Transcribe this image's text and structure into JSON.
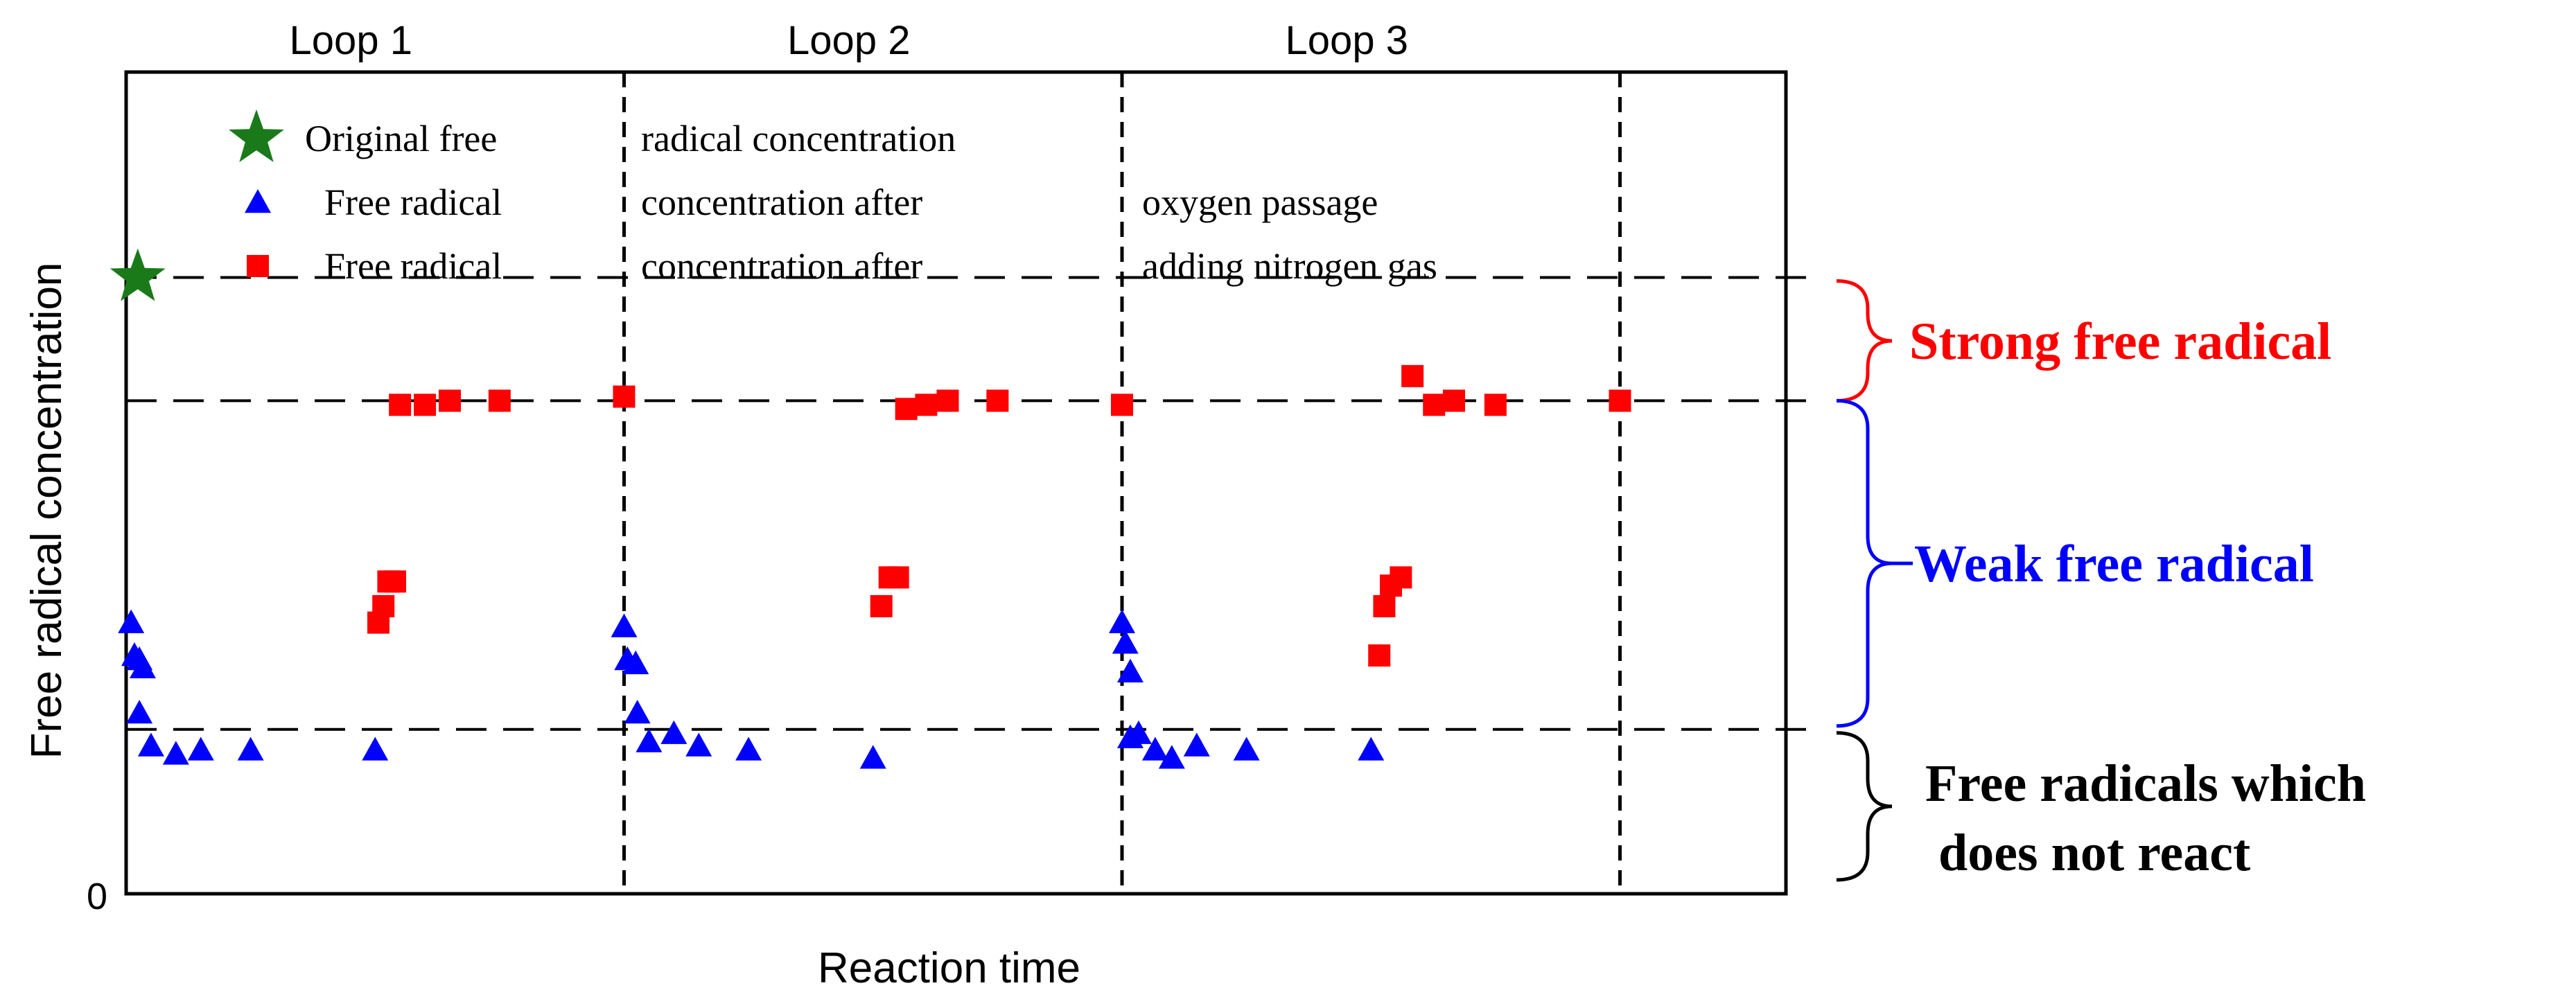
{
  "chart_data": {
    "type": "scatter",
    "title": "",
    "xlabel": "Reaction time",
    "ylabel": "Free radical concentration",
    "y_tick_labels": [
      "0"
    ],
    "xlim": [
      0,
      10
    ],
    "ylim": [
      0,
      10
    ],
    "loops": [
      "Loop  1",
      "Loop  2",
      "Loop  3"
    ],
    "loop_boundaries_x": [
      3,
      6,
      9
    ],
    "reference_levels_y": {
      "original": 7.5,
      "strong": 6.0,
      "nonreacting": 2.0
    },
    "legend": {
      "rows": [
        [
          "Original free",
          "radical concentration",
          ""
        ],
        [
          "Free radical",
          "concentration after",
          "oxygen passage"
        ],
        [
          "Free radical",
          "concentration after",
          "adding nitrogen gas"
        ]
      ]
    },
    "series": [
      {
        "name": "Original free radical concentration",
        "marker": "star",
        "color": "#1a7a1a",
        "points": [
          [
            0.07,
            7.5
          ]
        ]
      },
      {
        "name": "Free radical concentration after oxygen passage",
        "marker": "triangle",
        "color": "#0000ff",
        "points": [
          [
            0.03,
            3.3
          ],
          [
            0.05,
            2.9
          ],
          [
            0.08,
            2.85
          ],
          [
            0.1,
            2.75
          ],
          [
            0.08,
            2.2
          ],
          [
            0.15,
            1.8
          ],
          [
            0.3,
            1.7
          ],
          [
            0.45,
            1.75
          ],
          [
            0.75,
            1.75
          ],
          [
            1.5,
            1.75
          ],
          [
            3.0,
            3.25
          ],
          [
            3.02,
            2.85
          ],
          [
            3.07,
            2.8
          ],
          [
            3.08,
            2.2
          ],
          [
            3.15,
            1.85
          ],
          [
            3.3,
            1.95
          ],
          [
            3.45,
            1.8
          ],
          [
            3.75,
            1.75
          ],
          [
            4.5,
            1.65
          ],
          [
            6.0,
            3.3
          ],
          [
            6.02,
            3.05
          ],
          [
            6.05,
            2.7
          ],
          [
            6.05,
            1.9
          ],
          [
            6.1,
            1.95
          ],
          [
            6.2,
            1.75
          ],
          [
            6.3,
            1.65
          ],
          [
            6.45,
            1.8
          ],
          [
            6.75,
            1.75
          ],
          [
            7.5,
            1.75
          ]
        ]
      },
      {
        "name": "Free radical concentration after adding nitrogen gas",
        "marker": "square",
        "color": "#ff0000",
        "points": [
          [
            1.52,
            3.3
          ],
          [
            1.55,
            3.5
          ],
          [
            1.58,
            3.8
          ],
          [
            1.62,
            3.8
          ],
          [
            1.65,
            5.95
          ],
          [
            1.8,
            5.95
          ],
          [
            1.95,
            6.0
          ],
          [
            2.25,
            6.0
          ],
          [
            3.0,
            6.05
          ],
          [
            4.55,
            3.5
          ],
          [
            4.6,
            3.85
          ],
          [
            4.65,
            3.85
          ],
          [
            4.7,
            5.9
          ],
          [
            4.82,
            5.95
          ],
          [
            4.95,
            6.0
          ],
          [
            5.25,
            6.0
          ],
          [
            6.0,
            5.95
          ],
          [
            7.55,
            2.9
          ],
          [
            7.58,
            3.5
          ],
          [
            7.62,
            3.75
          ],
          [
            7.68,
            3.85
          ],
          [
            7.75,
            6.3
          ],
          [
            7.88,
            5.95
          ],
          [
            8.0,
            6.0
          ],
          [
            8.25,
            5.95
          ],
          [
            9.0,
            6.0
          ]
        ]
      }
    ],
    "annotations": [
      {
        "text": "Strong free radical",
        "color": "#ff0000",
        "range": [
          6.0,
          7.5
        ]
      },
      {
        "text": "Weak free radical",
        "color": "#0000ff",
        "range": [
          2.0,
          6.0
        ]
      },
      {
        "text": "Free radicals which",
        "text2": " does not react",
        "color": "#000000",
        "range": [
          0,
          2.0
        ]
      }
    ]
  }
}
